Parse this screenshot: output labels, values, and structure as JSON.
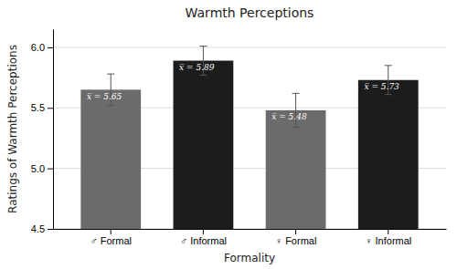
{
  "chart_data": {
    "type": "bar",
    "title": "Warmth Perceptions",
    "xlabel": "Formality",
    "ylabel": "Ratings of Warmth Perceptions",
    "categories": [
      "♂ Formal",
      "♂ Informal",
      "♀ Formal",
      "♀ Informal"
    ],
    "values": [
      5.65,
      5.89,
      5.48,
      5.73
    ],
    "errors": [
      0.13,
      0.12,
      0.14,
      0.12
    ],
    "value_labels": [
      "x̅ = 5.65",
      "x̅ = 5.89",
      "x̅ = 5.48",
      "x̅ = 5.73"
    ],
    "colors": [
      "#6b6b6b",
      "#1c1c1c",
      "#6b6b6b",
      "#1c1c1c"
    ],
    "ylim": [
      4.5,
      6.15
    ],
    "yticks": [
      4.5,
      {
        "value": 5.0,
        "label": "5.0"
      },
      5.5,
      {
        "value": 6.0,
        "label": "6.0"
      }
    ],
    "grid": true
  }
}
